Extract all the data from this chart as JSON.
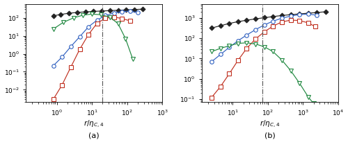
{
  "panel_a": {
    "xlim": [
      0.13,
      1000
    ],
    "ylim": [
      0.002,
      600
    ],
    "vline": 20,
    "xlabel": "$r/\\eta_{C,4}$",
    "label": "(a)",
    "black_diamond": {
      "x": [
        0.8,
        1.3,
        2.2,
        3.8,
        6.5,
        11,
        19,
        32,
        55,
        95,
        160,
        280
      ],
      "y": [
        130,
        155,
        180,
        200,
        215,
        228,
        240,
        252,
        264,
        276,
        290,
        305
      ]
    },
    "blue_circle": {
      "x": [
        0.8,
        1.4,
        2.5,
        4.5,
        8,
        14,
        24,
        42,
        72,
        120,
        200
      ],
      "y": [
        0.22,
        0.65,
        2.5,
        9,
        32,
        75,
        135,
        185,
        220,
        235,
        195
      ]
    },
    "red_square": {
      "x": [
        0.8,
        1.4,
        2.5,
        4.5,
        8,
        14,
        24,
        42,
        72,
        120
      ],
      "y": [
        0.003,
        0.018,
        0.18,
        1.8,
        12,
        50,
        95,
        110,
        92,
        68
      ]
    },
    "green_triangle": {
      "x": [
        0.8,
        1.5,
        3.0,
        5.5,
        10,
        18,
        32,
        55,
        90,
        145
      ],
      "y": [
        24,
        55,
        100,
        140,
        162,
        148,
        110,
        48,
        7,
        0.5
      ]
    }
  },
  "panel_b": {
    "xlim": [
      1.3,
      10000
    ],
    "ylim": [
      0.07,
      5000
    ],
    "vline": 70,
    "xlabel": "$r/\\eta_{C,4}$",
    "label": "(b)",
    "black_diamond": {
      "x": [
        2.5,
        4.5,
        8,
        14,
        25,
        45,
        80,
        140,
        250,
        450,
        800,
        1400,
        2500,
        4500
      ],
      "y": [
        320,
        420,
        540,
        660,
        780,
        910,
        1040,
        1180,
        1330,
        1470,
        1600,
        1730,
        1870,
        2050
      ]
    },
    "blue_circle": {
      "x": [
        2.5,
        4.5,
        8,
        14,
        25,
        45,
        80,
        140,
        250,
        450,
        800,
        1400,
        2500
      ],
      "y": [
        7,
        16,
        36,
        75,
        145,
        270,
        460,
        700,
        980,
        1250,
        1470,
        1560,
        1380
      ]
    },
    "red_square": {
      "x": [
        2.5,
        4.5,
        8,
        14,
        25,
        45,
        80,
        140,
        250,
        450,
        800,
        1400,
        2200
      ],
      "y": [
        0.12,
        0.42,
        1.8,
        8,
        32,
        95,
        210,
        400,
        640,
        790,
        750,
        580,
        380
      ]
    },
    "green_triangle": {
      "x": [
        2.5,
        4.5,
        8,
        14,
        25,
        45,
        80,
        140,
        250,
        450,
        800,
        1400,
        2000
      ],
      "y": [
        22,
        32,
        43,
        56,
        60,
        52,
        38,
        22,
        8.5,
        2.5,
        0.6,
        0.13,
        0.06
      ]
    }
  },
  "colors": {
    "black": "#222222",
    "blue": "#3060C0",
    "red": "#C03020",
    "green": "#208840"
  }
}
